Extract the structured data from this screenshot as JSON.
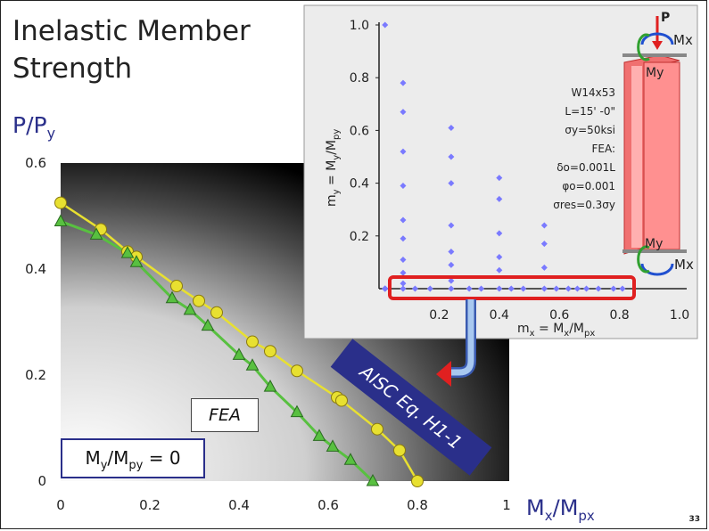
{
  "slide": {
    "title": "Inelastic Member Strength",
    "page_number": "33",
    "main_y_label": "P/P",
    "main_y_label_sub": "y",
    "main_x_label": "M",
    "main_x_label_sub1": "x",
    "main_x_label_mid": "/M",
    "main_x_label_sub2": "px",
    "fea_label": "FEA",
    "aisc_label": "AISC Eq. H1-1",
    "ratio_box": {
      "m": "M",
      "sub1": "y",
      "mid": "/M",
      "sub2": "py",
      "rest": " = 0"
    }
  },
  "inset": {
    "y_label": "m",
    "y_label_sub": "y",
    "y_label_rest": " = M",
    "y_label_rest_sub": "y",
    "y_label_end": "/M",
    "y_label_end_sub": "py",
    "x_label": "m",
    "x_label_sub": "x",
    "x_label_rest": " = M",
    "x_label_rest_sub": "x",
    "x_label_end": "/M",
    "x_label_end_sub": "px",
    "annotations": [
      "W14x53",
      "L=15' -0\"",
      "σy=50ksi",
      "FEA:",
      "δo=0.001L",
      "φo=0.001",
      "σres=0.3σy"
    ],
    "member_labels": {
      "P": "P",
      "Mx_top": "Mx",
      "My_top": "My",
      "My_bottom": "My",
      "Mx_bottom": "Mx"
    },
    "xticks": [
      "0.2",
      "0.4",
      "0.6",
      "0.8",
      "1.0"
    ],
    "yticks": [
      "0.2",
      "0.4",
      "0.6",
      "0.8",
      "1.0"
    ]
  },
  "colors": {
    "aisc_series": "#e8e030",
    "fea_series": "#58c040",
    "inset_points": "#7a7aff",
    "highlight": "#e02020",
    "label_blue": "#2a2f8a"
  },
  "chart_data": [
    {
      "type": "line",
      "xlabel": "Mx/Mpx",
      "ylabel": "P/Py",
      "xlim": [
        0,
        1
      ],
      "ylim": [
        0,
        0.6
      ],
      "xticks": [
        "0",
        "0.2",
        "0.4",
        "0.6",
        "0.8",
        "1"
      ],
      "yticks": [
        "0",
        "0.2",
        "0.4",
        "0.6"
      ],
      "series": [
        {
          "name": "AISC Eq. H1-1",
          "marker": "circle",
          "x": [
            0.0,
            0.09,
            0.15,
            0.17,
            0.26,
            0.31,
            0.35,
            0.43,
            0.47,
            0.53,
            0.62,
            0.63,
            0.71,
            0.76,
            0.8
          ],
          "y": [
            0.525,
            0.475,
            0.433,
            0.423,
            0.368,
            0.34,
            0.318,
            0.263,
            0.245,
            0.208,
            0.158,
            0.152,
            0.098,
            0.058,
            0.0
          ]
        },
        {
          "name": "FEA",
          "marker": "triangle",
          "x": [
            0.0,
            0.08,
            0.15,
            0.17,
            0.25,
            0.29,
            0.33,
            0.4,
            0.43,
            0.47,
            0.53,
            0.58,
            0.61,
            0.65,
            0.7
          ],
          "y": [
            0.49,
            0.465,
            0.43,
            0.413,
            0.345,
            0.323,
            0.293,
            0.238,
            0.218,
            0.178,
            0.13,
            0.085,
            0.065,
            0.04,
            0.0
          ]
        }
      ]
    },
    {
      "type": "scatter",
      "xlabel": "mx = Mx/Mpx",
      "ylabel": "my = My/Mpy",
      "xlim": [
        0,
        1.0
      ],
      "ylim": [
        0,
        1.0
      ],
      "x": [
        0.02,
        0.02,
        0.02,
        0.02,
        0.02,
        0.02,
        0.02,
        0.02,
        0.08,
        0.08,
        0.08,
        0.08,
        0.08,
        0.08,
        0.08,
        0.08,
        0.08,
        0.08,
        0.24,
        0.24,
        0.24,
        0.24,
        0.24,
        0.24,
        0.24,
        0.24,
        0.4,
        0.4,
        0.4,
        0.4,
        0.4,
        0.4,
        0.55,
        0.55,
        0.55,
        0.55,
        0.12,
        0.17,
        0.3,
        0.34,
        0.44,
        0.48,
        0.59,
        0.63,
        0.66,
        0.69,
        0.73,
        0.78,
        0.81
      ],
      "y": [
        1.0,
        0.0,
        0.0,
        0.0,
        0.0,
        0.0,
        0.0,
        0.0,
        0.78,
        0.67,
        0.52,
        0.39,
        0.26,
        0.19,
        0.11,
        0.06,
        0.02,
        0.0,
        0.61,
        0.5,
        0.4,
        0.24,
        0.14,
        0.09,
        0.03,
        0.0,
        0.42,
        0.34,
        0.21,
        0.12,
        0.07,
        0.0,
        0.24,
        0.17,
        0.08,
        0.0,
        0.0,
        0.0,
        0.0,
        0.0,
        0.0,
        0.0,
        0.0,
        0.0,
        0.0,
        0.0,
        0.0,
        0.0,
        0.0
      ]
    }
  ]
}
